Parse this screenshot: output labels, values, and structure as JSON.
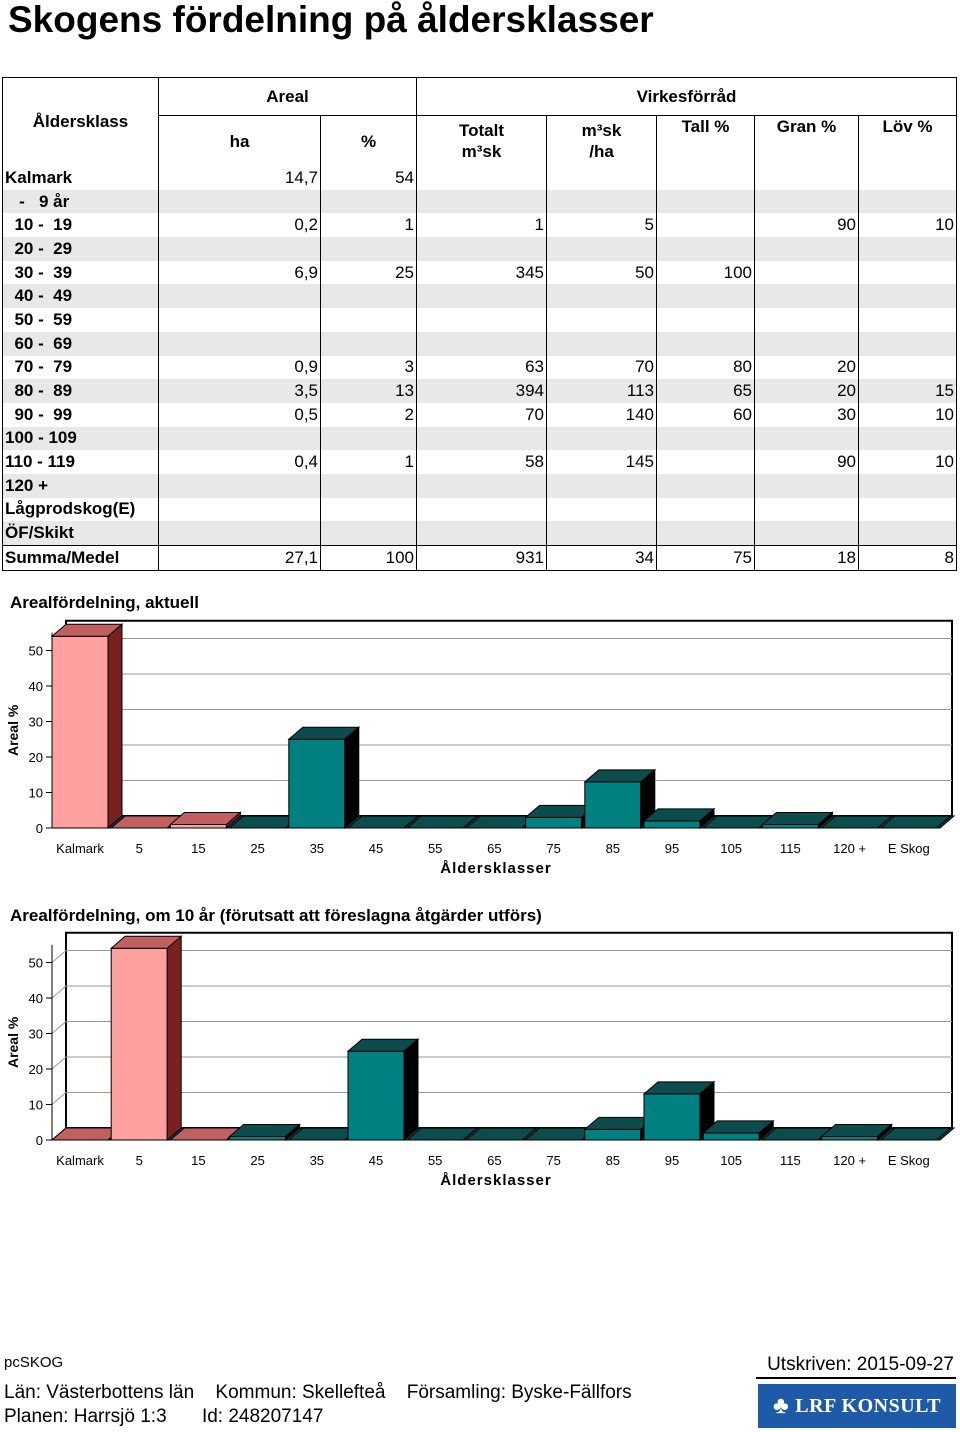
{
  "title": "Skogens fördelning på åldersklasser",
  "table": {
    "header": {
      "age_class": "Åldersklass",
      "areal": "Areal",
      "virkesforrad": "Virkesförråd",
      "ha": "ha",
      "pct": "%",
      "totalt_line1": "Totalt",
      "totalt_line2": "m³sk",
      "m3sk_line1": "m³sk",
      "m3sk_line2": "/ha",
      "tall": "Tall %",
      "gran": "Gran %",
      "lov": "Löv %"
    },
    "rows": [
      {
        "label": "Kalmark",
        "ha": "14,7",
        "pct": "54",
        "totalt": "",
        "m3ha": "",
        "tall": "",
        "gran": "",
        "lov": ""
      },
      {
        "label": "   -   9 år",
        "ha": "",
        "pct": "",
        "totalt": "",
        "m3ha": "",
        "tall": "",
        "gran": "",
        "lov": ""
      },
      {
        "label": "  10 -  19",
        "ha": "0,2",
        "pct": "1",
        "totalt": "1",
        "m3ha": "5",
        "tall": "",
        "gran": "90",
        "lov": "10"
      },
      {
        "label": "  20 -  29",
        "ha": "",
        "pct": "",
        "totalt": "",
        "m3ha": "",
        "tall": "",
        "gran": "",
        "lov": ""
      },
      {
        "label": "  30 -  39",
        "ha": "6,9",
        "pct": "25",
        "totalt": "345",
        "m3ha": "50",
        "tall": "100",
        "gran": "",
        "lov": ""
      },
      {
        "label": "  40 -  49",
        "ha": "",
        "pct": "",
        "totalt": "",
        "m3ha": "",
        "tall": "",
        "gran": "",
        "lov": ""
      },
      {
        "label": "  50 -  59",
        "ha": "",
        "pct": "",
        "totalt": "",
        "m3ha": "",
        "tall": "",
        "gran": "",
        "lov": ""
      },
      {
        "label": "  60 -  69",
        "ha": "",
        "pct": "",
        "totalt": "",
        "m3ha": "",
        "tall": "",
        "gran": "",
        "lov": ""
      },
      {
        "label": "  70 -  79",
        "ha": "0,9",
        "pct": "3",
        "totalt": "63",
        "m3ha": "70",
        "tall": "80",
        "gran": "20",
        "lov": ""
      },
      {
        "label": "  80 -  89",
        "ha": "3,5",
        "pct": "13",
        "totalt": "394",
        "m3ha": "113",
        "tall": "65",
        "gran": "20",
        "lov": "15"
      },
      {
        "label": "  90 -  99",
        "ha": "0,5",
        "pct": "2",
        "totalt": "70",
        "m3ha": "140",
        "tall": "60",
        "gran": "30",
        "lov": "10"
      },
      {
        "label": "100 - 109",
        "ha": "",
        "pct": "",
        "totalt": "",
        "m3ha": "",
        "tall": "",
        "gran": "",
        "lov": ""
      },
      {
        "label": "110 - 119",
        "ha": "0,4",
        "pct": "1",
        "totalt": "58",
        "m3ha": "145",
        "tall": "",
        "gran": "90",
        "lov": "10"
      },
      {
        "label": "120 +",
        "ha": "",
        "pct": "",
        "totalt": "",
        "m3ha": "",
        "tall": "",
        "gran": "",
        "lov": ""
      },
      {
        "label": "Lågprodskog(E)",
        "ha": "",
        "pct": "",
        "totalt": "",
        "m3ha": "",
        "tall": "",
        "gran": "",
        "lov": ""
      },
      {
        "label": "ÖF/Skikt",
        "ha": "",
        "pct": "",
        "totalt": "",
        "m3ha": "",
        "tall": "",
        "gran": "",
        "lov": ""
      }
    ],
    "summary": {
      "label": "Summa/Medel",
      "ha": "27,1",
      "pct": "100",
      "totalt": "931",
      "m3ha": "34",
      "tall": "75",
      "gran": "18",
      "lov": "8"
    }
  },
  "chart_data": [
    {
      "type": "bar",
      "title": "Arealfördelning, aktuell",
      "xlabel": "Åldersklasser",
      "ylabel": "Areal %",
      "ylim": [
        0,
        55
      ],
      "yticks": [
        0,
        10,
        20,
        30,
        40,
        50
      ],
      "categories": [
        "Kalmark",
        "5",
        "15",
        "25",
        "35",
        "45",
        "55",
        "65",
        "75",
        "85",
        "95",
        "105",
        "115",
        "120 +",
        "E Skog"
      ],
      "values": [
        54,
        0,
        1,
        0,
        25,
        0,
        0,
        0,
        3,
        13,
        2,
        0,
        1,
        0,
        0
      ],
      "colors": [
        "#ffa0a0",
        "#ffa0a0",
        "#ffa0a0",
        "#008080",
        "#008080",
        "#008080",
        "#008080",
        "#008080",
        "#008080",
        "#008080",
        "#008080",
        "#008080",
        "#008080",
        "#008080",
        "#008080"
      ],
      "grid": true
    },
    {
      "type": "bar",
      "title": "Arealfördelning, om 10 år (förutsatt att föreslagna åtgärder utförs)",
      "xlabel": "Åldersklasser",
      "ylabel": "Areal %",
      "ylim": [
        0,
        55
      ],
      "yticks": [
        0,
        10,
        20,
        30,
        40,
        50
      ],
      "categories": [
        "Kalmark",
        "5",
        "15",
        "25",
        "35",
        "45",
        "55",
        "65",
        "75",
        "85",
        "95",
        "105",
        "115",
        "120 +",
        "E Skog"
      ],
      "values": [
        0,
        54,
        0,
        1,
        0,
        25,
        0,
        0,
        0,
        3,
        13,
        2,
        0,
        1,
        0
      ],
      "colors": [
        "#ffa0a0",
        "#ffa0a0",
        "#ffa0a0",
        "#008080",
        "#008080",
        "#008080",
        "#008080",
        "#008080",
        "#008080",
        "#008080",
        "#008080",
        "#008080",
        "#008080",
        "#008080",
        "#008080"
      ],
      "grid": true
    }
  ],
  "footer": {
    "software": "pcSKOG",
    "printed": "Utskriven: 2015-09-27",
    "lan": "Län: Västerbottens län",
    "kommun": "Kommun: Skellefteå",
    "forsamling": "Församling: Byske-Fällfors",
    "planen": "Planen: Harrsjö 1:3",
    "id": "Id: 248207147",
    "logo_text": "LRF KONSULT",
    "logo_icon": "clover-icon"
  }
}
